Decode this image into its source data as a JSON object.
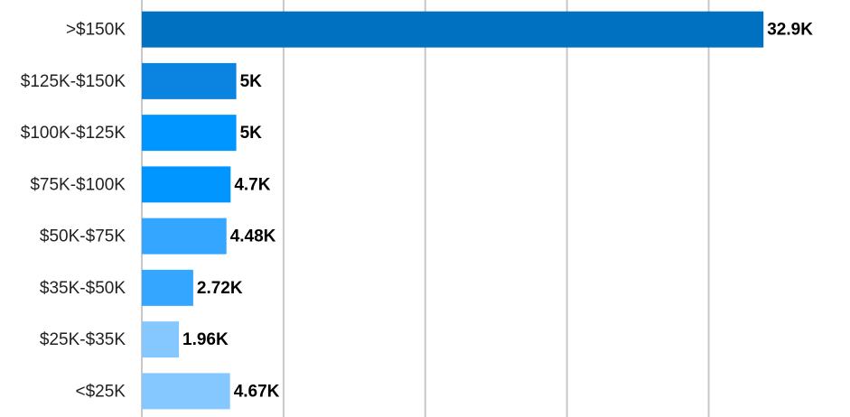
{
  "chart_data": {
    "type": "barh",
    "categories": [
      ">$150K",
      "$125K-$150K",
      "$100K-$125K",
      "$75K-$100K",
      "$50K-$75K",
      "$35K-$50K",
      "$25K-$35K",
      "<$25K"
    ],
    "values": [
      32900,
      5000,
      5000,
      4700,
      4480,
      2720,
      1960,
      4670
    ],
    "value_labels": [
      "32.9K",
      "5K",
      "5K",
      "4.7K",
      "4.48K",
      "2.72K",
      "1.96K",
      "4.67K"
    ],
    "colors": [
      "#0070c0",
      "#0a84e0",
      "#0096ff",
      "#0096ff",
      "#35a6ff",
      "#35a6ff",
      "#85c8ff",
      "#85c8ff"
    ],
    "xlim": [
      0,
      37000
    ],
    "xticks": [
      0,
      7500,
      15000,
      22500,
      30000
    ],
    "grid": true
  }
}
